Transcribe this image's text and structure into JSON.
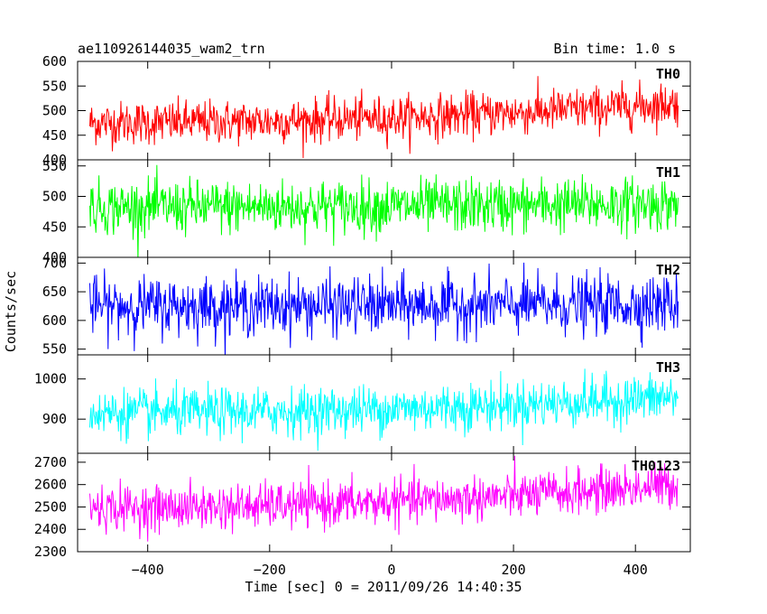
{
  "chart_data": {
    "type": "line",
    "title": "ae110926144035_wam2_trn",
    "subtitle": "Bin time: 1.0 s",
    "xlabel": "Time [sec] 0 = 2011/09/26 14:40:35",
    "ylabel": "Counts/sec",
    "xlim": [
      -515,
      490
    ],
    "x_ticks": [
      -400,
      -200,
      0,
      200,
      400
    ],
    "x_range": [
      -495,
      470
    ],
    "bin_time_s": 1.0,
    "panels": [
      {
        "name": "TH0",
        "color": "#ff0000",
        "ylim": [
          400,
          600
        ],
        "y_ticks": [
          400,
          450,
          500,
          550,
          600
        ],
        "mean_start": 475,
        "mean_end": 515,
        "scatter": 22
      },
      {
        "name": "TH1",
        "color": "#00ff00",
        "ylim": [
          400,
          560
        ],
        "y_ticks": [
          400,
          450,
          500,
          550
        ],
        "mean_start": 482,
        "mean_end": 488,
        "scatter": 22
      },
      {
        "name": "TH2",
        "color": "#0000ff",
        "ylim": [
          540,
          710
        ],
        "y_ticks": [
          550,
          600,
          650,
          700
        ],
        "mean_start": 625,
        "mean_end": 628,
        "scatter": 25
      },
      {
        "name": "TH3",
        "color": "#00ffff",
        "ylim": [
          815,
          1060
        ],
        "y_ticks": [
          900,
          1000
        ],
        "mean_start": 915,
        "mean_end": 955,
        "scatter": 30
      },
      {
        "name": "TH0123",
        "color": "#ff00ff",
        "ylim": [
          2300,
          2740
        ],
        "y_ticks": [
          2300,
          2400,
          2500,
          2600,
          2700
        ],
        "mean_start": 2495,
        "mean_end": 2600,
        "scatter": 50
      }
    ]
  }
}
